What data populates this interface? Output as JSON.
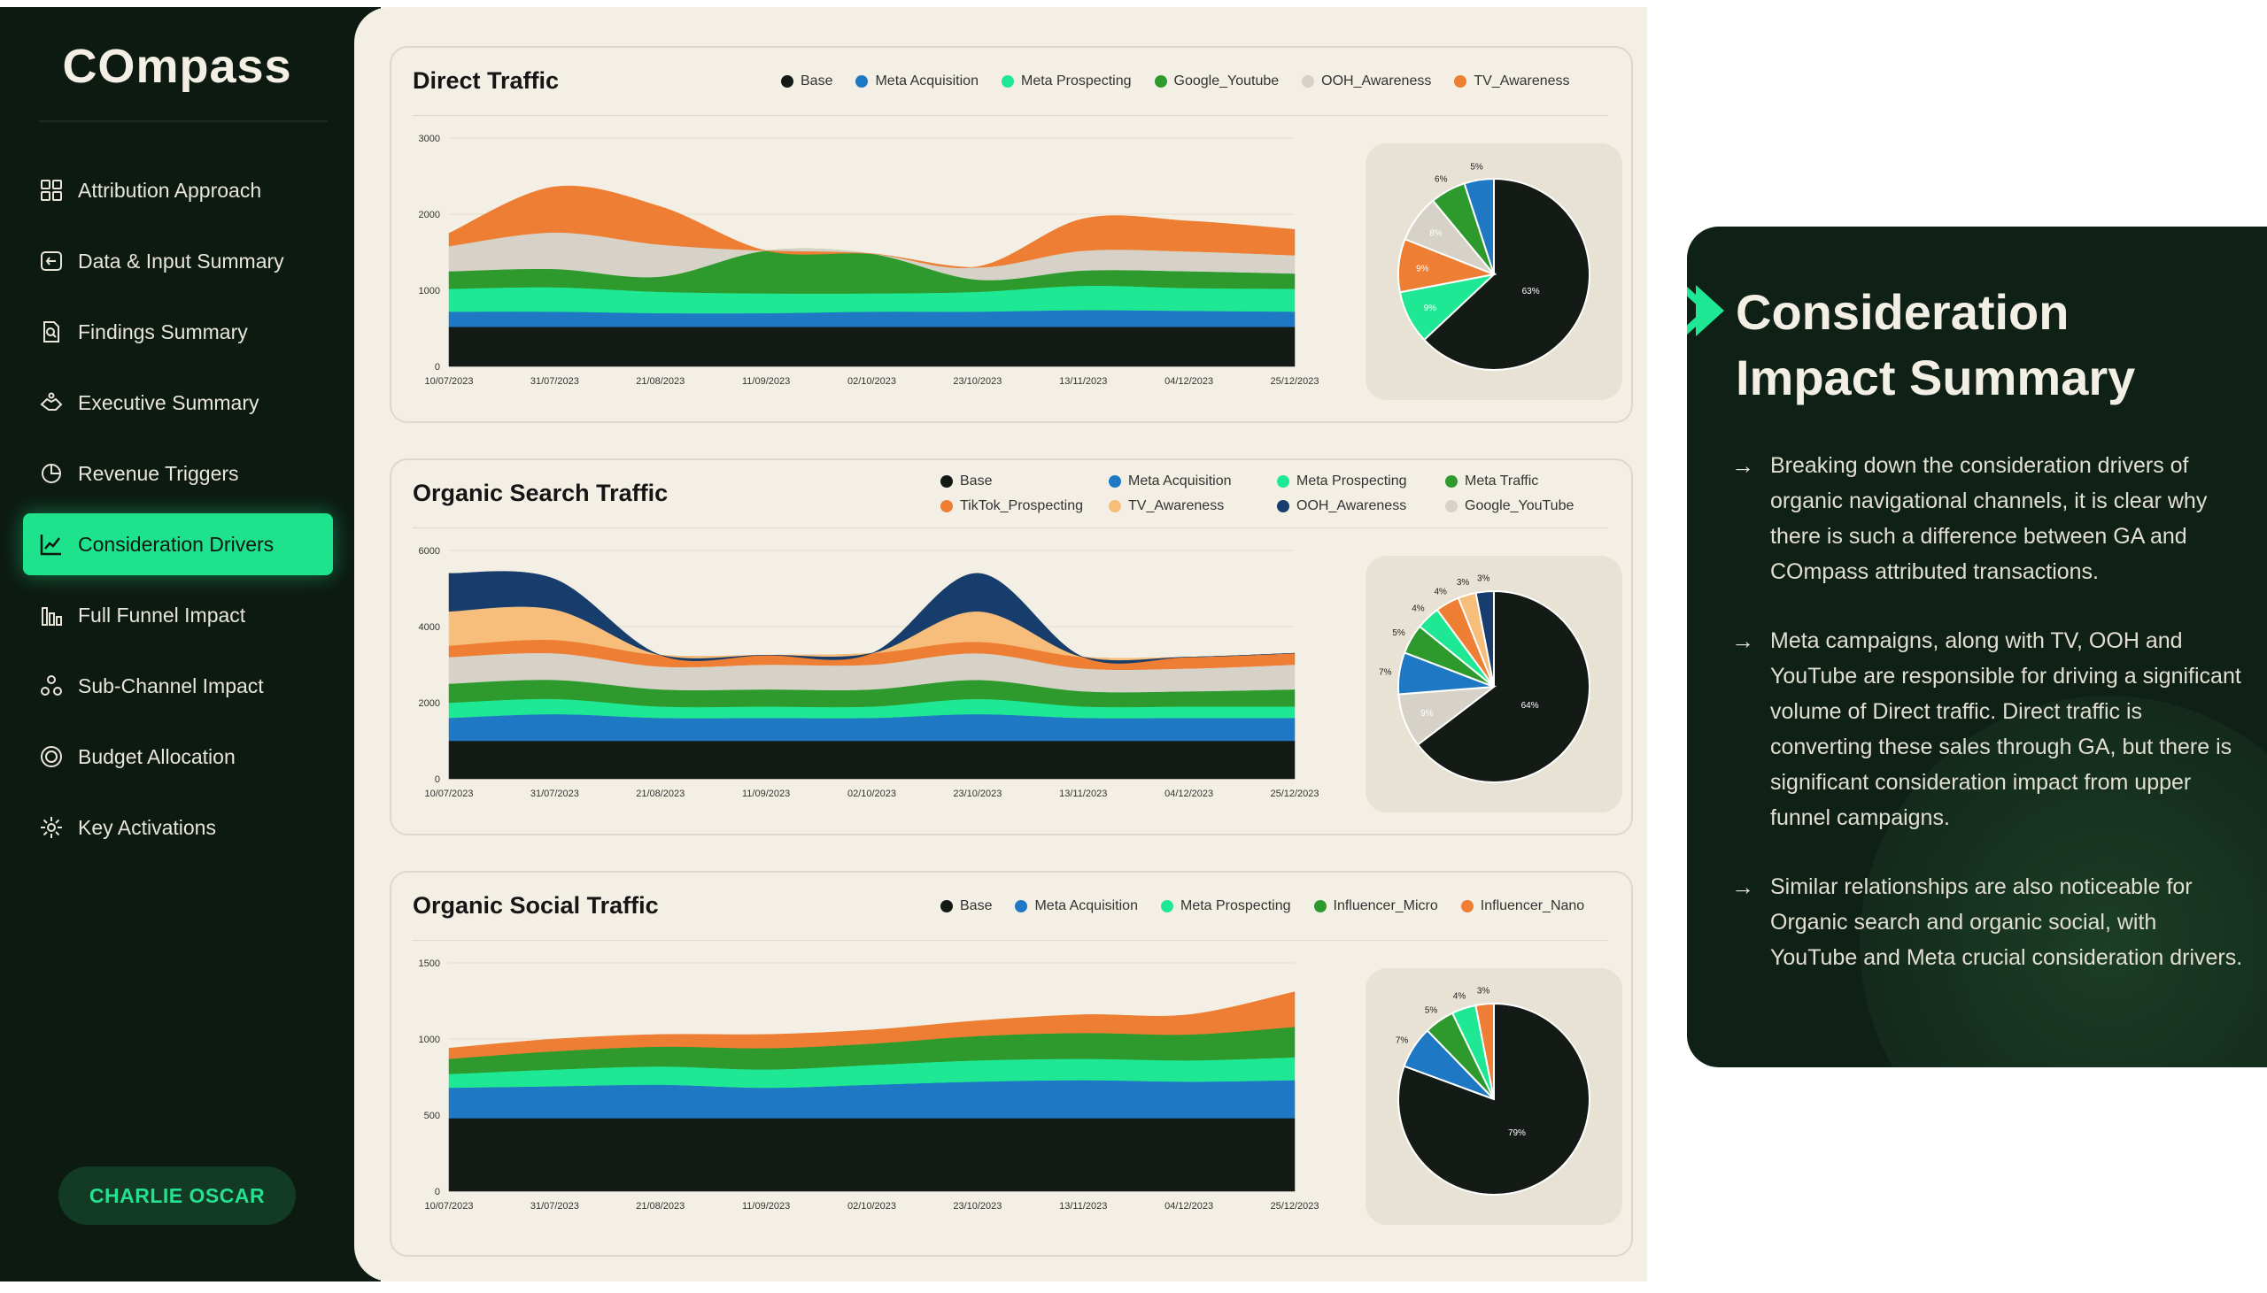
{
  "app": {
    "logo": "COmpass",
    "user_label": "CHARLIE OSCAR"
  },
  "sidebar": {
    "items": [
      {
        "label": "Attribution Approach",
        "icon": "grid-icon",
        "active": false
      },
      {
        "label": "Data & Input Summary",
        "icon": "data-icon",
        "active": false
      },
      {
        "label": "Findings Summary",
        "icon": "document-search-icon",
        "active": false
      },
      {
        "label": "Executive Summary",
        "icon": "handshake-icon",
        "active": false
      },
      {
        "label": "Revenue Triggers",
        "icon": "pie-chart-icon",
        "active": false
      },
      {
        "label": "Consideration Drivers",
        "icon": "trend-chart-icon",
        "active": true
      },
      {
        "label": "Full Funnel Impact",
        "icon": "bar-chart-icon",
        "active": false
      },
      {
        "label": "Sub-Channel Impact",
        "icon": "network-icon",
        "active": false
      },
      {
        "label": "Budget Allocation",
        "icon": "coin-icon",
        "active": false
      },
      {
        "label": "Key Activations",
        "icon": "gear-icon",
        "active": false
      }
    ]
  },
  "colors": {
    "Base": "#141a16",
    "Meta Acquisition": "#1f78c4",
    "Meta Prospecting": "#1ee893",
    "Green": "#2e9a2e",
    "Grey": "#d6d2c8",
    "Orange": "#ee7e33",
    "Light Orange": "#f7bd7a",
    "Navy": "#163d6b"
  },
  "summary": {
    "title": "Consideration Impact Summary",
    "bullets": [
      "Breaking down the consideration drivers of organic navigational channels, it is clear why there is such a difference between GA and COmpass attributed transactions.",
      "Meta campaigns, along with TV, OOH and YouTube are responsible for driving a significant volume of Direct traffic. Direct traffic is converting these sales through GA, but there is significant consideration impact from upper funnel campaigns.",
      "Similar relationships are also noticeable for Organic search and organic social, with YouTube and Meta crucial consideration drivers."
    ]
  },
  "chart_data": [
    {
      "type": "area",
      "title": "Direct Traffic",
      "x": [
        "10/07/2023",
        "31/07/2023",
        "21/08/2023",
        "11/09/2023",
        "02/10/2023",
        "23/10/2023",
        "13/11/2023",
        "04/12/2023",
        "25/12/2023"
      ],
      "ylim": [
        0,
        3000
      ],
      "yticks": [
        0,
        1000,
        2000,
        3000
      ],
      "legend": "top-right",
      "series": [
        {
          "name": "Base",
          "color": "#141a16",
          "values": [
            520,
            520,
            520,
            520,
            520,
            520,
            520,
            520,
            520
          ]
        },
        {
          "name": "Meta Acquisition",
          "color": "#1f78c4",
          "values": [
            200,
            200,
            180,
            180,
            200,
            200,
            220,
            210,
            200
          ]
        },
        {
          "name": "Meta Prospecting",
          "color": "#1ee893",
          "values": [
            300,
            320,
            280,
            260,
            240,
            260,
            320,
            300,
            300
          ]
        },
        {
          "name": "Google_Youtube",
          "color": "#2e9a2e",
          "values": [
            230,
            240,
            200,
            560,
            520,
            160,
            200,
            220,
            200
          ]
        },
        {
          "name": "OOH_Awareness",
          "color": "#d6d2c8",
          "values": [
            330,
            480,
            420,
            0,
            0,
            160,
            260,
            260,
            240
          ]
        },
        {
          "name": "TV_Awareness",
          "color": "#ee7e33",
          "values": [
            170,
            600,
            500,
            0,
            0,
            10,
            420,
            400,
            340
          ]
        }
      ]
    },
    {
      "type": "pie",
      "title": "",
      "slices": [
        {
          "label": "63%",
          "value": 63,
          "color": "#141a16"
        },
        {
          "label": "9%",
          "value": 9,
          "color": "#1ee893"
        },
        {
          "label": "9%",
          "value": 9,
          "color": "#ee7e33"
        },
        {
          "label": "8%",
          "value": 8,
          "color": "#d6d2c8"
        },
        {
          "label": "6%",
          "value": 6,
          "color": "#2e9a2e"
        },
        {
          "label": "5%",
          "value": 5,
          "color": "#1f78c4"
        }
      ]
    },
    {
      "type": "area",
      "title": "Organic Search Traffic",
      "x": [
        "10/07/2023",
        "31/07/2023",
        "21/08/2023",
        "11/09/2023",
        "02/10/2023",
        "23/10/2023",
        "13/11/2023",
        "04/12/2023",
        "25/12/2023"
      ],
      "ylim": [
        0,
        6000
      ],
      "yticks": [
        0,
        2000,
        4000,
        6000
      ],
      "legend": "top-right",
      "series": [
        {
          "name": "Base",
          "color": "#141a16",
          "values": [
            1000,
            1000,
            1000,
            1000,
            1000,
            1000,
            1000,
            1000,
            1000
          ]
        },
        {
          "name": "Meta Acquisition",
          "color": "#1f78c4",
          "values": [
            600,
            700,
            600,
            600,
            600,
            700,
            600,
            600,
            600
          ]
        },
        {
          "name": "Meta Prospecting",
          "color": "#1ee893",
          "values": [
            400,
            400,
            300,
            300,
            300,
            400,
            300,
            300,
            300
          ]
        },
        {
          "name": "Meta Traffic",
          "color": "#2e9a2e",
          "values": [
            500,
            500,
            450,
            450,
            450,
            500,
            400,
            400,
            450
          ]
        },
        {
          "name": "Google_YouTube",
          "color": "#d6d2c8",
          "values": [
            700,
            700,
            600,
            650,
            650,
            700,
            600,
            600,
            650
          ]
        },
        {
          "name": "TikTok_Prospecting",
          "color": "#ee7e33",
          "values": [
            300,
            350,
            300,
            250,
            300,
            300,
            300,
            300,
            300
          ]
        },
        {
          "name": "TV_Awareness",
          "color": "#f7bd7a",
          "values": [
            900,
            800,
            0,
            0,
            0,
            800,
            0,
            0,
            0
          ]
        },
        {
          "name": "OOH_Awareness",
          "color": "#163d6b",
          "values": [
            1000,
            800,
            0,
            0,
            0,
            1000,
            0,
            0,
            0
          ]
        }
      ]
    },
    {
      "type": "pie",
      "title": "",
      "slices": [
        {
          "label": "64%",
          "value": 64,
          "color": "#141a16"
        },
        {
          "label": "9%",
          "value": 9,
          "color": "#d6d2c8"
        },
        {
          "label": "7%",
          "value": 7,
          "color": "#1f78c4"
        },
        {
          "label": "5%",
          "value": 5,
          "color": "#2e9a2e"
        },
        {
          "label": "4%",
          "value": 4,
          "color": "#1ee893"
        },
        {
          "label": "4%",
          "value": 4,
          "color": "#ee7e33"
        },
        {
          "label": "3%",
          "value": 3,
          "color": "#f7bd7a"
        },
        {
          "label": "3%",
          "value": 3,
          "color": "#163d6b"
        }
      ]
    },
    {
      "type": "area",
      "title": "Organic Social Traffic",
      "x": [
        "10/07/2023",
        "31/07/2023",
        "21/08/2023",
        "11/09/2023",
        "02/10/2023",
        "23/10/2023",
        "13/11/2023",
        "04/12/2023",
        "25/12/2023"
      ],
      "ylim": [
        0,
        1500
      ],
      "yticks": [
        0,
        500,
        1000,
        1500
      ],
      "legend": "top-right",
      "series": [
        {
          "name": "Base",
          "color": "#141a16",
          "values": [
            480,
            480,
            480,
            480,
            480,
            480,
            480,
            480,
            480
          ]
        },
        {
          "name": "Meta Acquisition",
          "color": "#1f78c4",
          "values": [
            200,
            210,
            220,
            200,
            220,
            240,
            250,
            240,
            250
          ]
        },
        {
          "name": "Meta Prospecting",
          "color": "#1ee893",
          "values": [
            90,
            110,
            120,
            120,
            130,
            140,
            140,
            140,
            150
          ]
        },
        {
          "name": "Influencer_Micro",
          "color": "#2e9a2e",
          "values": [
            100,
            120,
            130,
            140,
            140,
            160,
            170,
            170,
            200
          ]
        },
        {
          "name": "Influencer_Nano",
          "color": "#ee7e33",
          "values": [
            70,
            80,
            80,
            90,
            90,
            100,
            120,
            130,
            230
          ]
        }
      ]
    },
    {
      "type": "pie",
      "title": "",
      "slices": [
        {
          "label": "79%",
          "value": 79,
          "color": "#141a16"
        },
        {
          "label": "7%",
          "value": 7,
          "color": "#1f78c4"
        },
        {
          "label": "5%",
          "value": 5,
          "color": "#2e9a2e"
        },
        {
          "label": "4%",
          "value": 4,
          "color": "#1ee893"
        },
        {
          "label": "3%",
          "value": 3,
          "color": "#ee7e33"
        }
      ]
    }
  ]
}
